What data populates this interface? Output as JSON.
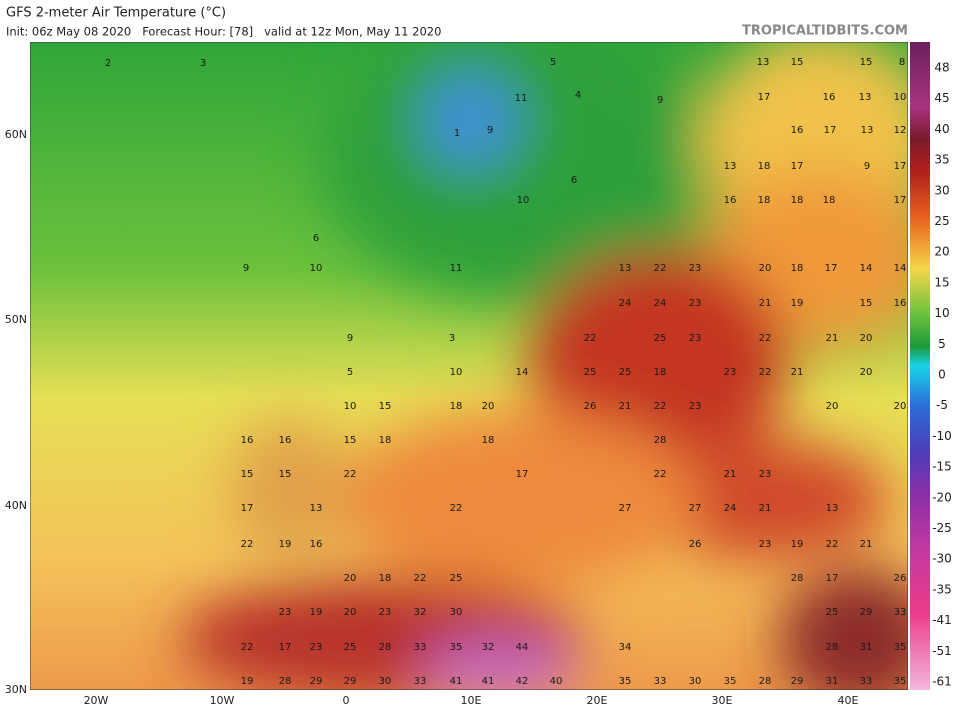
{
  "header": {
    "title": "GFS 2-meter Air Temperature (°C)",
    "subtitle": "Init: 06z May 08 2020   Forecast Hour: [78]   valid at 12z Mon, May 11 2020",
    "source": "TROPICALTIDBITS.COM"
  },
  "map": {
    "lat_labels": [
      "60N",
      "50N",
      "40N",
      "30N"
    ],
    "lon_labels": [
      "20W",
      "10W",
      "0",
      "10E",
      "20E",
      "30E",
      "40E"
    ],
    "colorbar_labels": [
      "48",
      "45",
      "40",
      "35",
      "30",
      "25",
      "20",
      "15",
      "10",
      "5",
      "0",
      "-5",
      "-10",
      "-15",
      "-20",
      "-25",
      "-30",
      "-35",
      "-41",
      "-51",
      "-61"
    ],
    "temperature_labels": [
      2,
      3,
      5,
      4,
      1,
      9,
      11,
      10,
      6,
      9,
      13,
      15,
      15,
      8,
      17,
      16,
      13,
      10,
      16,
      17,
      13,
      12,
      13,
      18,
      17,
      9,
      17,
      16,
      18,
      18,
      18,
      17,
      6,
      9,
      10,
      11,
      13,
      22,
      23,
      20,
      18,
      17,
      14,
      14,
      9,
      3,
      24,
      24,
      23,
      21,
      19,
      15,
      16,
      22,
      25,
      23,
      22,
      21,
      20,
      5,
      10,
      14,
      25,
      25,
      18,
      23,
      22,
      21,
      20,
      10,
      15,
      18,
      20,
      26,
      21,
      22,
      23,
      20,
      20,
      16,
      16,
      15,
      18,
      18,
      28,
      15,
      15,
      22,
      17,
      22,
      21,
      23,
      17,
      13,
      22,
      27,
      27,
      24,
      21,
      13,
      22,
      19,
      16,
      26,
      23,
      19,
      22,
      21,
      20,
      18,
      22,
      25,
      28,
      17,
      26,
      23,
      19,
      20,
      23,
      32,
      30,
      25,
      29,
      33,
      22,
      17,
      23,
      25,
      28,
      33,
      35,
      32,
      44,
      34,
      28,
      31,
      35,
      19,
      28,
      29,
      29,
      30,
      33,
      41,
      41,
      42,
      40,
      35,
      33,
      30,
      35,
      28,
      29,
      31,
      33,
      35
    ]
  }
}
